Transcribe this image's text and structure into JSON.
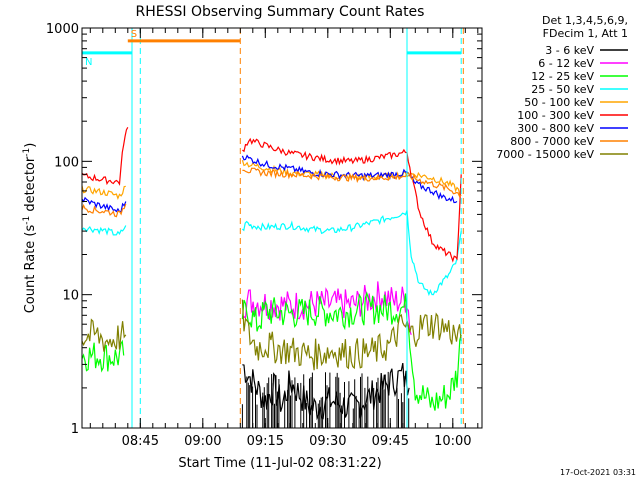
{
  "chart_data": {
    "type": "line",
    "title": "RHESSI Observing Summary Count Rates",
    "xlabel": "Start Time (11-Jul-02 08:31:22)",
    "ylabel_main": "Count Rate (s",
    "ylabel_sup1": "-1",
    "ylabel_mid": " detector",
    "ylabel_sup2": "-1",
    "ylabel_end": ")",
    "y_scale": "log",
    "ylim": [
      1,
      1000
    ],
    "xlim_minutes_after_0831": [
      0,
      96
    ],
    "x_tick_labels": [
      "08:45",
      "09:00",
      "09:15",
      "09:30",
      "09:45",
      "10:00"
    ],
    "x_tick_minutes_after_0831": [
      14,
      29,
      44,
      59,
      74,
      89
    ],
    "y_tick_labels": [
      "1",
      "10",
      "100",
      "1000"
    ],
    "y_tick_values": [
      1,
      10,
      100,
      1000
    ],
    "legend_header": [
      "Det 1,3,4,5,6,9,",
      "FDecim 1, Att 1"
    ],
    "legend_position": "right",
    "timestamp": "17-Oct-2021 03:31",
    "flags": [
      {
        "label": "S",
        "color": "#ff8000",
        "level_counts": 800,
        "x_start": 11,
        "x_end": 38
      },
      {
        "label": "N",
        "color": "#00ffff",
        "level_counts": 650,
        "x_start": 0,
        "x_end": 12
      },
      {
        "label": "",
        "color": "#00ffff",
        "level_counts": 650,
        "x_start": 78,
        "x_end": 91
      }
    ],
    "markers": [
      {
        "color": "#00ffff",
        "style": "solid",
        "x": 12
      },
      {
        "color": "#00ffff",
        "style": "dashed",
        "x": 14
      },
      {
        "color": "#ff8000",
        "style": "dashed",
        "x": 38
      },
      {
        "color": "#00ffff",
        "style": "solid",
        "x": 78
      },
      {
        "color": "#00ffff",
        "style": "dashed",
        "x": 91
      },
      {
        "color": "#ff8000",
        "style": "dashed",
        "x": 91.5
      }
    ],
    "series": [
      {
        "name": "3 - 6 keV",
        "color": "#000000",
        "segments": [
          {
            "x": [
              38.5,
              40,
              42,
              44,
              46,
              48,
              50,
              55,
              60,
              65,
              70,
              74,
              77,
              78.5
            ],
            "y": [
              3,
              2.5,
              2,
              1.6,
              2,
              1.5,
              2.2,
              1.4,
              1.6,
              1.4,
              1.8,
              2.2,
              2.5,
              2
            ]
          }
        ]
      },
      {
        "name": "6 - 12 keV",
        "color": "#ff00ff",
        "segments": [
          {
            "x": [
              38.5,
              40,
              45,
              50,
              55,
              60,
              65,
              70,
              72,
              75,
              78,
              79
            ],
            "y": [
              8.5,
              9,
              8.5,
              8.3,
              8.5,
              8.5,
              8.4,
              9.5,
              10,
              8.8,
              9.5,
              5
            ]
          }
        ]
      },
      {
        "name": "12 - 25 keV",
        "color": "#00ff00",
        "segments": [
          {
            "x": [
              0,
              4,
              8,
              10
            ],
            "y": [
              3.5,
              3.5,
              3.4,
              3.5
            ]
          },
          {
            "x": [
              38.5,
              40,
              42,
              44,
              50,
              56,
              62,
              68,
              74,
              78,
              80,
              84,
              88,
              90,
              91
            ],
            "y": [
              7,
              7.5,
              6,
              7.5,
              7.2,
              7.5,
              7.3,
              7.8,
              7.8,
              8,
              2,
              1.5,
              1.8,
              2.5,
              5
            ]
          }
        ]
      },
      {
        "name": "25 - 50 keV",
        "color": "#00ffff",
        "segments": [
          {
            "x": [
              0,
              3,
              6,
              9,
              10.5
            ],
            "y": [
              32,
              31,
              30,
              28,
              33
            ]
          },
          {
            "x": [
              38.5,
              39.5,
              40.5,
              44,
              50,
              55,
              60,
              65,
              70,
              74,
              78,
              79,
              81,
              84,
              86,
              88,
              90,
              91
            ],
            "y": [
              30,
              35,
              33,
              32,
              33,
              31,
              30,
              32,
              35,
              38,
              42,
              20,
              12,
              10,
              12,
              14,
              18,
              30
            ]
          }
        ]
      },
      {
        "name": "50 - 100 keV",
        "color": "#ffa500",
        "segments": [
          {
            "x": [
              0,
              3,
              6,
              9,
              10.5
            ],
            "y": [
              62,
              60,
              58,
              55,
              65
            ]
          },
          {
            "x": [
              38.5,
              40,
              45,
              50,
              55,
              60,
              65,
              70,
              75,
              78,
              80,
              84,
              88,
              90,
              91
            ],
            "y": [
              100,
              95,
              88,
              82,
              80,
              78,
              76,
              76,
              78,
              80,
              80,
              75,
              68,
              62,
              58
            ]
          }
        ]
      },
      {
        "name": "100 - 300 keV",
        "color": "#ff0000",
        "segments": [
          {
            "x": [
              0,
              3,
              6,
              9,
              10,
              11
            ],
            "y": [
              78,
              75,
              72,
              70,
              140,
              180
            ]
          },
          {
            "x": [
              38.5,
              40,
              43,
              46,
              50,
              55,
              60,
              65,
              70,
              75,
              78,
              79,
              81,
              84,
              86,
              88,
              90,
              91
            ],
            "y": [
              120,
              145,
              135,
              125,
              115,
              108,
              102,
              100,
              105,
              112,
              118,
              80,
              42,
              25,
              22,
              20,
              18,
              80
            ]
          }
        ]
      },
      {
        "name": "300 - 800 keV",
        "color": "#0000ff",
        "segments": [
          {
            "x": [
              0,
              3,
              6,
              9,
              10.5
            ],
            "y": [
              52,
              48,
              45,
              42,
              50
            ]
          },
          {
            "x": [
              38.5,
              40,
              44,
              50,
              55,
              60,
              65,
              70,
              75,
              78,
              80,
              84,
              86,
              90
            ],
            "y": [
              110,
              105,
              95,
              88,
              82,
              80,
              78,
              78,
              80,
              82,
              68,
              60,
              55,
              50
            ]
          }
        ]
      },
      {
        "name": "800 - 7000 keV",
        "color": "#ff8000",
        "segments": [
          {
            "x": [
              0,
              3,
              6,
              9,
              10.5
            ],
            "y": [
              45,
              43,
              42,
              40,
              48
            ]
          },
          {
            "x": [
              38.5,
              40,
              44,
              50,
              55,
              60,
              65,
              70,
              75,
              78,
              80,
              84,
              88,
              91
            ],
            "y": [
              90,
              85,
              82,
              80,
              78,
              76,
              75,
              75,
              76,
              78,
              74,
              68,
              62,
              56
            ]
          }
        ]
      },
      {
        "name": "7000 - 15000 keV",
        "color": "#808000",
        "segments": [
          {
            "x": [
              0,
              3,
              6,
              9,
              10.5
            ],
            "y": [
              4.8,
              5,
              4.5,
              4.8,
              5
            ]
          },
          {
            "x": [
              38.5,
              40,
              42,
              44,
              46,
              50,
              55,
              60,
              65,
              70,
              74,
              77,
              79,
              82,
              85,
              88,
              91
            ],
            "y": [
              7,
              5,
              4,
              4.2,
              4,
              3.8,
              3.5,
              3.8,
              3.6,
              3.7,
              4.2,
              6,
              5,
              6,
              6,
              5.5,
              4.5
            ]
          }
        ]
      }
    ]
  }
}
